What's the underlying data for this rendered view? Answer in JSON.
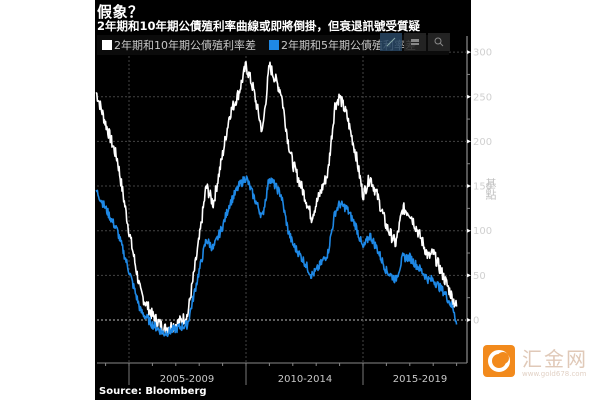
{
  "header": {
    "title": "假象？",
    "subtitle": "2年期和10年期公債殖利率曲線或即將倒掛，但衰退訊號受質疑"
  },
  "legend": [
    {
      "label": "2年期和10年期公債殖利率差",
      "color": "#ffffff"
    },
    {
      "label": "2年期和5年期公債殖利率差",
      "color": "#1e88e5"
    }
  ],
  "toolbar": {
    "icons": [
      "pen-icon",
      "layout-icon",
      "search-icon"
    ]
  },
  "axes": {
    "y_label": "基點",
    "y_ticks": [
      "300",
      "250",
      "200",
      "150",
      "100",
      "50",
      "0"
    ],
    "x_ticks": [
      "2005-2009",
      "2010-2014",
      "2015-2019"
    ]
  },
  "source": "Source:  Bloomberg",
  "watermark": {
    "name": "汇金网",
    "url": "www.gold678.com",
    "color": "#f28a1c"
  },
  "chart_data": {
    "type": "line",
    "title": "假象？",
    "subtitle": "2年期和10年期公債殖利率曲線或即將倒掛，但衰退訊號受質疑",
    "xlabel": "",
    "ylabel": "基點",
    "ylim": [
      -20,
      310
    ],
    "y_ticks": [
      0,
      50,
      100,
      150,
      200,
      250,
      300
    ],
    "x_tick_labels": [
      "2005-2009",
      "2010-2014",
      "2015-2019"
    ],
    "grid": true,
    "legend_position": "top-left",
    "x": [
      2003.6,
      2004.0,
      2004.5,
      2005.0,
      2005.5,
      2006.0,
      2006.5,
      2007.0,
      2007.5,
      2008.0,
      2008.3,
      2008.6,
      2009.0,
      2009.3,
      2009.7,
      2010.0,
      2010.3,
      2010.7,
      2011.0,
      2011.5,
      2011.8,
      2012.0,
      2012.5,
      2012.8,
      2013.0,
      2013.5,
      2013.8,
      2014.0,
      2014.3,
      2014.7,
      2015.0,
      2015.3,
      2015.6,
      2016.0,
      2016.4,
      2016.7,
      2017.0,
      2017.5,
      2017.8,
      2018.0,
      2018.5,
      2018.9,
      2019.0
    ],
    "series": [
      {
        "name": "2年期和10年期公債殖利率差",
        "color": "#ffffff",
        "values": [
          255,
          220,
          180,
          100,
          30,
          5,
          -10,
          -5,
          5,
          90,
          150,
          130,
          185,
          230,
          255,
          285,
          260,
          210,
          285,
          255,
          200,
          175,
          140,
          115,
          130,
          165,
          240,
          250,
          230,
          185,
          140,
          160,
          140,
          105,
          85,
          125,
          120,
          90,
          70,
          75,
          45,
          20,
          15
        ]
      },
      {
        "name": "2年期和5年期公債殖利率差",
        "color": "#1e88e5",
        "values": [
          145,
          125,
          100,
          55,
          10,
          -5,
          -15,
          -10,
          -5,
          55,
          90,
          80,
          105,
          130,
          150,
          160,
          140,
          115,
          160,
          140,
          100,
          85,
          65,
          50,
          55,
          75,
          120,
          130,
          125,
          105,
          80,
          95,
          80,
          55,
          45,
          70,
          70,
          55,
          45,
          45,
          30,
          10,
          -5
        ]
      }
    ]
  }
}
